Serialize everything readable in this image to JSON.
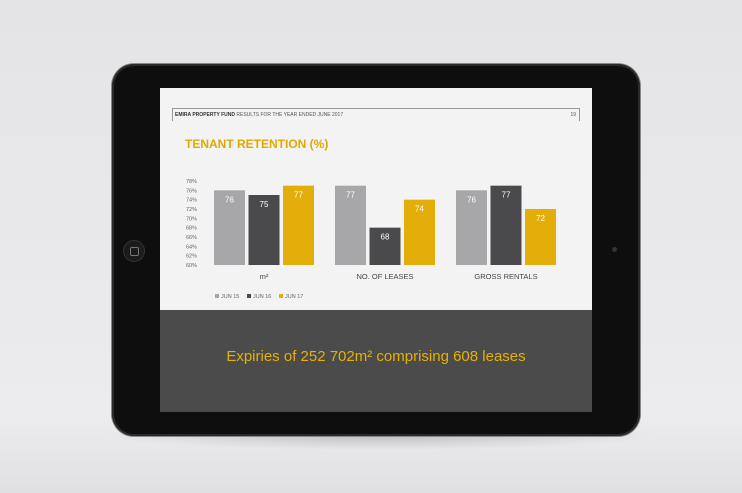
{
  "slide": {
    "header_bold": "EMIRA PROPERTY FUND",
    "header_text": "RESULTS FOR THE YEAR ENDED JUNE 2017",
    "page_number": "19",
    "expiry_text": "Expiries of 252 702m² comprising 608 leases"
  },
  "chart_data": {
    "type": "bar",
    "title": "TENANT RETENTION (%)",
    "categories": [
      "m²",
      "NO. OF LEASES",
      "GROSS RENTALS"
    ],
    "series": [
      {
        "name": "JUN 15",
        "values": [
          76,
          77,
          76
        ],
        "color": "#a7a7aa"
      },
      {
        "name": "JUN 16",
        "values": [
          75,
          68,
          77
        ],
        "color": "#4a4a4c"
      },
      {
        "name": "JUN 17",
        "values": [
          77,
          74,
          72
        ],
        "color": "#e4ae0a"
      }
    ],
    "ylim": [
      60,
      78
    ],
    "yticks": [
      "60%",
      "62%",
      "64%",
      "66%",
      "68%",
      "70%",
      "72%",
      "74%",
      "76%",
      "78%"
    ],
    "grid": false,
    "legend": "bottom-left",
    "data_labels": true
  },
  "colors": {
    "accent": "#e2a800",
    "bottom_panel": "#4b4b4c"
  }
}
